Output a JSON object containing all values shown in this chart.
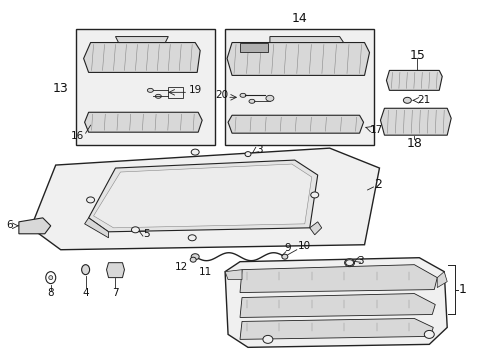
{
  "background_color": "#ffffff",
  "figure_size": [
    4.89,
    3.6
  ],
  "dpi": 100,
  "line_color": "#222222",
  "fill_light": "#f0f0f0",
  "fill_gray": "#d8d8d8",
  "fill_dark": "#b0b0b0",
  "fill_white": "#ffffff",
  "hatching_color": "#888888"
}
